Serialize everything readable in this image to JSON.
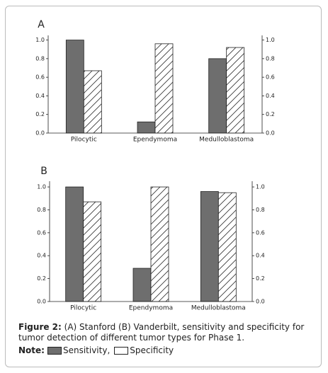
{
  "chart_data": [
    {
      "type": "bar",
      "title": "A",
      "categories": [
        "Pilocytic",
        "Ependymoma",
        "Medulloblastoma"
      ],
      "series": [
        {
          "name": "Sensitivity",
          "color": "#6e6e6e",
          "values": [
            1.0,
            0.12,
            0.8
          ]
        },
        {
          "name": "Specificity",
          "color": "#ffffff",
          "hatch": true,
          "values": [
            0.67,
            0.96,
            0.92
          ]
        }
      ],
      "ylim": [
        0,
        1.05
      ],
      "yticks": [
        {
          "value": 0,
          "label": "0.0"
        },
        {
          "value": 0.2,
          "label": "0.2"
        },
        {
          "value": 0.4,
          "label": "0.4"
        },
        {
          "value": 0.6,
          "label": "0.6"
        },
        {
          "value": 0.8,
          "label": "0.8"
        },
        {
          "value": 1,
          "label": "1.0"
        }
      ],
      "y2lim": [
        0,
        1.05
      ],
      "y2ticks": [
        {
          "value": 0,
          "label": "0.0"
        },
        {
          "value": 0.2,
          "label": "0.2"
        },
        {
          "value": 0.4,
          "label": "0.4"
        },
        {
          "value": 0.6,
          "label": "0.6"
        },
        {
          "value": 0.8,
          "label": "0.8"
        },
        {
          "value": 1,
          "label": "1.0"
        }
      ],
      "grid": false
    },
    {
      "type": "bar",
      "title": "B",
      "categories": [
        "Pilocytic",
        "Ependymoma",
        "Medulloblastoma"
      ],
      "series": [
        {
          "color": "#6e6e6e",
          "values": [
            1.0,
            0.29,
            0.96
          ]
        },
        {
          "color": "#ffffff",
          "hatch": true,
          "values": [
            0.87,
            1.0,
            0.95
          ]
        }
      ],
      "ylim": [
        0,
        1.05
      ],
      "yticks": [
        {
          "value": 0,
          "label": "0.0"
        },
        {
          "value": 0.2,
          "label": "0.2"
        },
        {
          "value": 0.4,
          "label": "0.4"
        },
        {
          "value": 0.6,
          "label": "0.6"
        },
        {
          "value": 0.8,
          "label": "0.8"
        },
        {
          "value": 1,
          "label": "1.0"
        }
      ],
      "y2lim": [
        0,
        1.05
      ],
      "y2ticks": [
        {
          "value": 0,
          "label": "0.0"
        },
        {
          "value": 0.2,
          "label": "0.2"
        },
        {
          "value": 0.4,
          "label": "0.4"
        },
        {
          "value": 0.6,
          "label": "0.6"
        },
        {
          "value": 0.8,
          "label": "0.8"
        },
        {
          "value": 1,
          "label": "1.0"
        }
      ],
      "grid": false
    }
  ],
  "caption": {
    "label": "Figure 2:",
    "text": "(A) Stanford (B) Vanderbilt, sensitivity and specificity for tumor detection of different tumor types for Phase 1."
  },
  "note": {
    "label": "Note:",
    "separator": ","
  }
}
